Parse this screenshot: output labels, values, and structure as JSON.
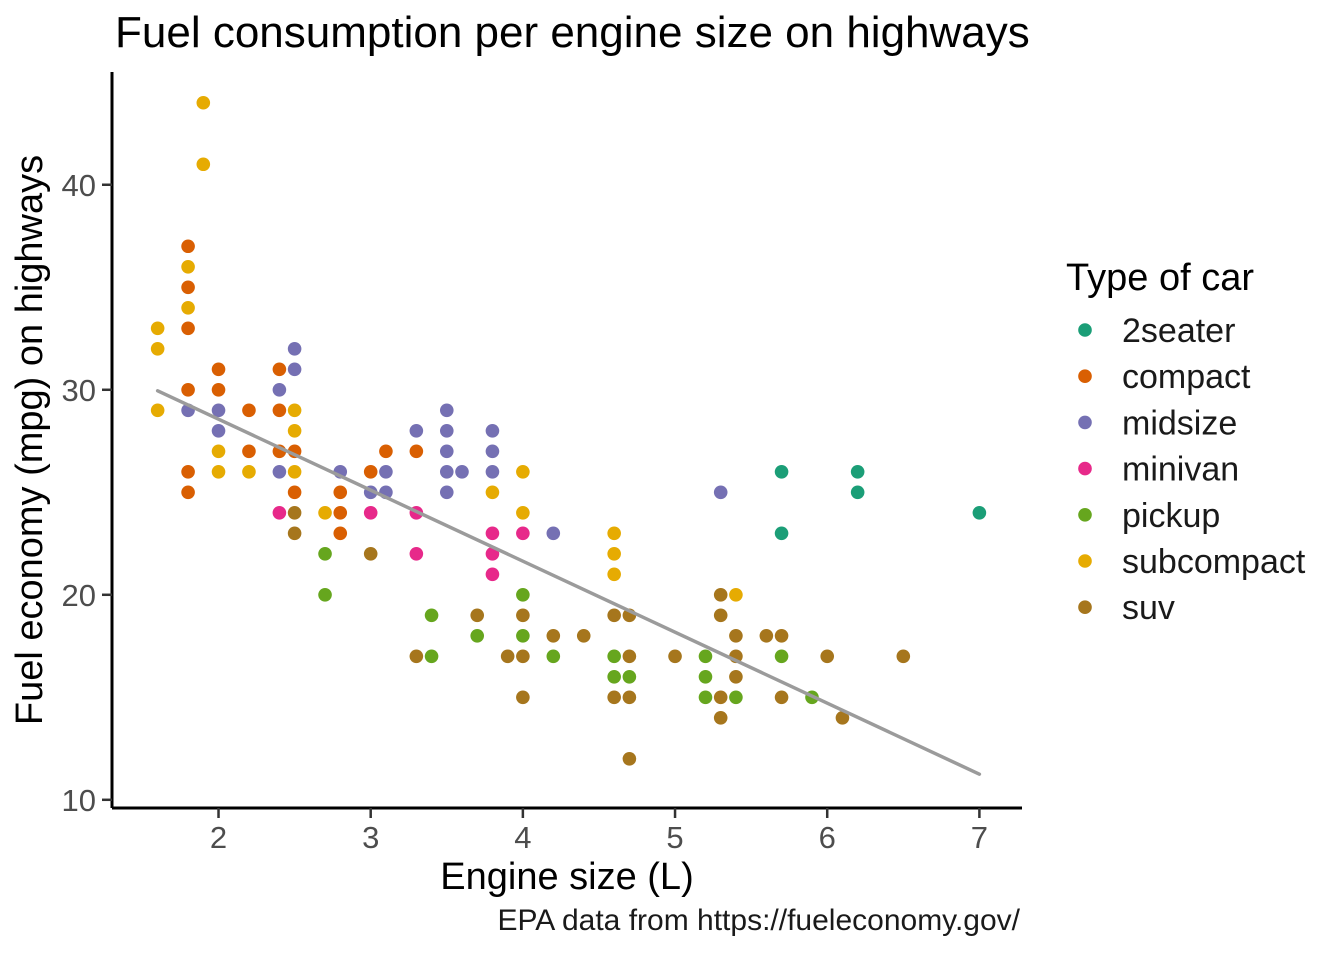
{
  "title": "Fuel consumption per engine size on highways",
  "caption": "EPA data from https://fueleconomy.gov/",
  "axes": {
    "x": {
      "label": "Engine size (L)",
      "ticks": [
        2,
        3,
        4,
        5,
        6,
        7
      ]
    },
    "y": {
      "label": "Fuel economy (mpg) on highways",
      "ticks": [
        10,
        20,
        30,
        40
      ]
    }
  },
  "legend": {
    "title": "Type of car",
    "items": [
      {
        "label": "2seater",
        "color": "#1B9E77"
      },
      {
        "label": "compact",
        "color": "#D95F02"
      },
      {
        "label": "midsize",
        "color": "#7570B3"
      },
      {
        "label": "minivan",
        "color": "#E7298A"
      },
      {
        "label": "pickup",
        "color": "#66A61E"
      },
      {
        "label": "subcompact",
        "color": "#E6AB02"
      },
      {
        "label": "suv",
        "color": "#A6761D"
      }
    ]
  },
  "chart_data": {
    "type": "scatter",
    "title": "Fuel consumption per engine size on highways",
    "xlabel": "Engine size (L)",
    "ylabel": "Fuel economy (mpg) on highways",
    "xlim": [
      1.3,
      7.28
    ],
    "ylim": [
      9.6,
      45.5
    ],
    "grid": false,
    "legend_position": "right",
    "point_radius_px": 6.8,
    "series": [
      {
        "name": "2seater",
        "color": "#1B9E77",
        "points": [
          [
            5.7,
            26
          ],
          [
            5.7,
            23
          ],
          [
            6.2,
            26
          ],
          [
            6.2,
            25
          ],
          [
            7.0,
            24
          ]
        ]
      },
      {
        "name": "compact",
        "color": "#D95F02",
        "points": [
          [
            1.8,
            37
          ],
          [
            1.8,
            35
          ],
          [
            1.8,
            33
          ],
          [
            1.8,
            30
          ],
          [
            1.8,
            26
          ],
          [
            1.8,
            25
          ],
          [
            2.0,
            31
          ],
          [
            2.0,
            30
          ],
          [
            2.2,
            29
          ],
          [
            2.2,
            27
          ],
          [
            2.4,
            31
          ],
          [
            2.4,
            29
          ],
          [
            2.4,
            27
          ],
          [
            2.5,
            27
          ],
          [
            2.5,
            25
          ],
          [
            2.8,
            25
          ],
          [
            2.8,
            24
          ],
          [
            2.8,
            23
          ],
          [
            3.0,
            26
          ],
          [
            3.1,
            27
          ],
          [
            3.3,
            27
          ]
        ]
      },
      {
        "name": "midsize",
        "color": "#7570B3",
        "points": [
          [
            1.8,
            29
          ],
          [
            2.0,
            29
          ],
          [
            2.0,
            28
          ],
          [
            2.4,
            30
          ],
          [
            2.4,
            26
          ],
          [
            2.5,
            32
          ],
          [
            2.5,
            31
          ],
          [
            2.8,
            26
          ],
          [
            3.0,
            25
          ],
          [
            3.1,
            26
          ],
          [
            3.1,
            25
          ],
          [
            3.3,
            28
          ],
          [
            3.5,
            29
          ],
          [
            3.5,
            28
          ],
          [
            3.5,
            27
          ],
          [
            3.5,
            26
          ],
          [
            3.5,
            25
          ],
          [
            3.6,
            26
          ],
          [
            3.8,
            28
          ],
          [
            3.8,
            27
          ],
          [
            3.8,
            26
          ],
          [
            4.2,
            23
          ],
          [
            5.3,
            25
          ]
        ]
      },
      {
        "name": "minivan",
        "color": "#E7298A",
        "points": [
          [
            2.4,
            24
          ],
          [
            3.0,
            24
          ],
          [
            3.3,
            24
          ],
          [
            3.3,
            22
          ],
          [
            3.8,
            23
          ],
          [
            3.8,
            22
          ],
          [
            3.8,
            21
          ],
          [
            4.0,
            23
          ]
        ]
      },
      {
        "name": "pickup",
        "color": "#66A61E",
        "points": [
          [
            2.7,
            22
          ],
          [
            2.7,
            20
          ],
          [
            3.4,
            19
          ],
          [
            3.4,
            17
          ],
          [
            3.7,
            18
          ],
          [
            4.0,
            20
          ],
          [
            4.0,
            18
          ],
          [
            4.2,
            17
          ],
          [
            4.6,
            17
          ],
          [
            4.6,
            16
          ],
          [
            4.7,
            16
          ],
          [
            5.2,
            17
          ],
          [
            5.2,
            16
          ],
          [
            5.2,
            15
          ],
          [
            5.4,
            15
          ],
          [
            5.7,
            17
          ],
          [
            5.9,
            15
          ]
        ]
      },
      {
        "name": "subcompact",
        "color": "#E6AB02",
        "points": [
          [
            1.6,
            33
          ],
          [
            1.6,
            32
          ],
          [
            1.6,
            29
          ],
          [
            1.8,
            36
          ],
          [
            1.8,
            34
          ],
          [
            1.9,
            44
          ],
          [
            1.9,
            41
          ],
          [
            2.0,
            27
          ],
          [
            2.0,
            26
          ],
          [
            2.2,
            26
          ],
          [
            2.5,
            29
          ],
          [
            2.5,
            28
          ],
          [
            2.5,
            26
          ],
          [
            2.7,
            24
          ],
          [
            3.8,
            25
          ],
          [
            4.0,
            26
          ],
          [
            4.0,
            24
          ],
          [
            4.6,
            23
          ],
          [
            4.6,
            22
          ],
          [
            4.6,
            21
          ],
          [
            5.4,
            20
          ]
        ]
      },
      {
        "name": "suv",
        "color": "#A6761D",
        "points": [
          [
            2.5,
            24
          ],
          [
            2.5,
            23
          ],
          [
            3.0,
            22
          ],
          [
            3.3,
            17
          ],
          [
            3.7,
            19
          ],
          [
            3.9,
            17
          ],
          [
            4.0,
            19
          ],
          [
            4.0,
            17
          ],
          [
            4.0,
            15
          ],
          [
            4.2,
            18
          ],
          [
            4.4,
            18
          ],
          [
            4.6,
            19
          ],
          [
            4.6,
            15
          ],
          [
            4.7,
            19
          ],
          [
            4.7,
            17
          ],
          [
            4.7,
            15
          ],
          [
            4.7,
            12
          ],
          [
            5.0,
            17
          ],
          [
            5.3,
            20
          ],
          [
            5.3,
            19
          ],
          [
            5.3,
            15
          ],
          [
            5.3,
            14
          ],
          [
            5.4,
            18
          ],
          [
            5.4,
            17
          ],
          [
            5.4,
            16
          ],
          [
            5.6,
            18
          ],
          [
            5.7,
            18
          ],
          [
            5.7,
            15
          ],
          [
            6.0,
            17
          ],
          [
            6.1,
            14
          ],
          [
            6.5,
            17
          ]
        ]
      }
    ],
    "trend_line": {
      "type": "linear",
      "x": [
        1.6,
        7.0
      ],
      "y": [
        29.95,
        11.25
      ],
      "color": "#9b9b9b"
    }
  }
}
